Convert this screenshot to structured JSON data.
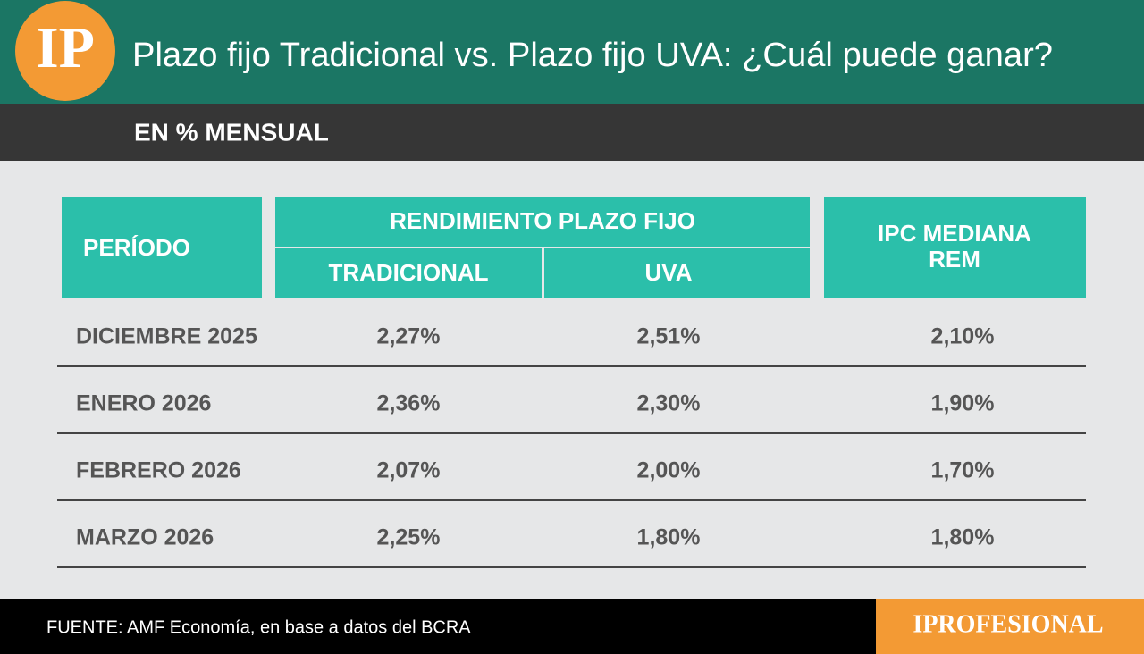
{
  "header": {
    "logo": "IP",
    "title": "Plazo fijo Tradicional vs. Plazo fijo UVA: ¿Cuál puede ganar?",
    "subtitle": "EN % MENSUAL"
  },
  "table": {
    "headers": {
      "period": "PERÍODO",
      "group": "RENDIMIENTO PLAZO FIJO",
      "traditional": "TRADICIONAL",
      "uva": "UVA",
      "ipc": [
        "IPC MEDIANA",
        "REM"
      ]
    },
    "rows": [
      [
        "DICIEMBRE 2025",
        "2,27%",
        "2,51%",
        "2,10%"
      ],
      [
        "ENERO 2026",
        "2,36%",
        "2,30%",
        "1,90%"
      ],
      [
        "FEBRERO 2026",
        "2,07%",
        "2,00%",
        "1,70%"
      ],
      [
        "MARZO 2026",
        "2,25%",
        "1,80%",
        "1,80%"
      ]
    ]
  },
  "footer": {
    "source": "FUENTE: AMF Economía, en base a datos del BCRA",
    "brand": "IPROFESIONAL"
  }
}
